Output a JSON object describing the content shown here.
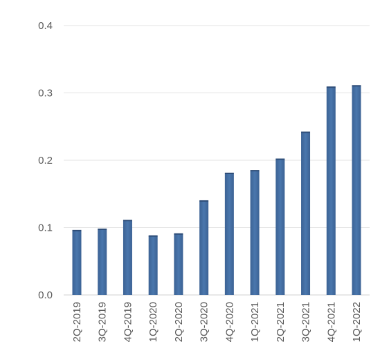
{
  "chart_data": {
    "type": "bar",
    "categories": [
      "2Q-2019",
      "3Q-2019",
      "4Q-2019",
      "1Q-2020",
      "2Q-2020",
      "3Q-2020",
      "4Q-2020",
      "1Q-2021",
      "2Q-2021",
      "3Q-2021",
      "4Q-2021",
      "1Q-2022"
    ],
    "values": [
      0.095,
      0.097,
      0.11,
      0.087,
      0.09,
      0.139,
      0.18,
      0.184,
      0.201,
      0.241,
      0.308,
      0.31
    ],
    "y_ticks": [
      "0.0",
      "0.1",
      "0.2",
      "0.3",
      "0.4"
    ],
    "ylim": [
      0,
      0.4
    ],
    "grid": true,
    "legend": "none",
    "bar_color": "#3c6294",
    "bar_color_light": "#4a77ad"
  }
}
